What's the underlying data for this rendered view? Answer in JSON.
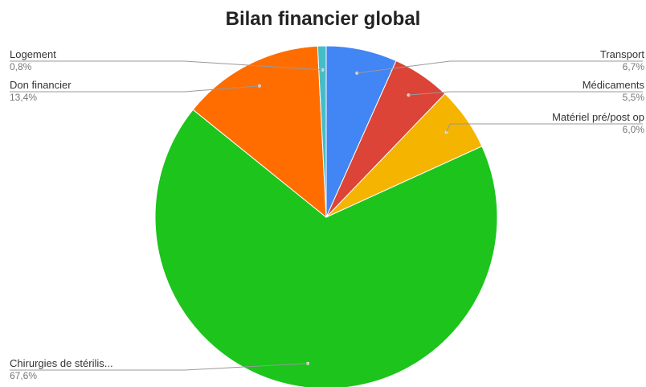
{
  "chart_data": {
    "type": "pie",
    "title": "Bilan financier global",
    "slices": [
      {
        "label": "Transport",
        "percent_label": "6,7%",
        "value": 6.7,
        "color": "#4285f4"
      },
      {
        "label": "Médicaments",
        "percent_label": "5,5%",
        "value": 5.5,
        "color": "#db4437"
      },
      {
        "label": "Matériel pré/post op",
        "percent_label": "6,0%",
        "value": 6.0,
        "color": "#f4b400"
      },
      {
        "label": "Chirurgies de stérilis...",
        "percent_label": "67,6%",
        "value": 67.6,
        "color": "#1cc41c"
      },
      {
        "label": "Don financier",
        "percent_label": "13,4%",
        "value": 13.4,
        "color": "#ff6d01"
      },
      {
        "label": "Logement",
        "percent_label": "0,8%",
        "value": 0.8,
        "color": "#46bdc6"
      }
    ],
    "legend": "none",
    "start_angle_deg": 0,
    "direction": "clockwise"
  }
}
